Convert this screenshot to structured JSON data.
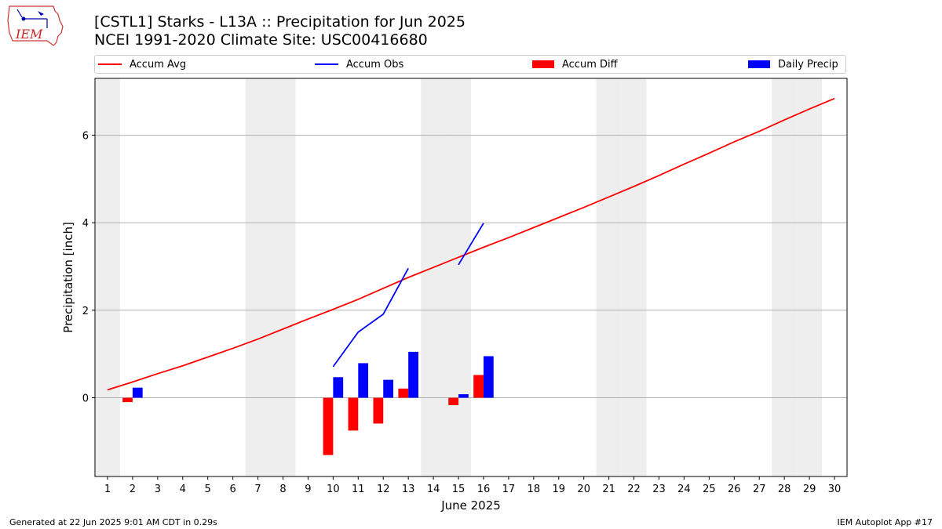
{
  "header": {
    "title_line1": "[CSTL1] Starks - L13A :: Precipitation for Jun 2025",
    "title_line2": "NCEI 1991-2020 Climate Site: USC00416680",
    "logo_text": "IEM"
  },
  "footer": {
    "left": "Generated at 22 Jun 2025 9:01 AM CDT in 0.29s",
    "right": "IEM Autoplot App #17"
  },
  "colors": {
    "avg": "#ff0000",
    "obs": "#0000ff",
    "diff": "#ff0000",
    "daily": "#0000ff",
    "weekend_shade": "#eeeeee",
    "grid": "#b0b0b0"
  },
  "chart_data": {
    "type": "bar",
    "xlabel": "June 2025",
    "ylabel": "Precipitation [inch]",
    "xlim": [
      0.5,
      30.5
    ],
    "ylim": [
      -1.8,
      7.3
    ],
    "yticks": [
      0,
      2,
      4,
      6
    ],
    "days": [
      1,
      2,
      3,
      4,
      5,
      6,
      7,
      8,
      9,
      10,
      11,
      12,
      13,
      14,
      15,
      16,
      17,
      18,
      19,
      20,
      21,
      22,
      23,
      24,
      25,
      26,
      27,
      28,
      29,
      30
    ],
    "shaded_days": [
      1,
      7,
      8,
      14,
      15,
      21,
      22,
      28,
      29
    ],
    "legend": [
      "Accum Avg",
      "Accum Obs",
      "Accum Diff",
      "Daily Precip"
    ],
    "series": [
      {
        "name": "Accum Avg",
        "kind": "line",
        "x": [
          1,
          2,
          3,
          4,
          5,
          6,
          7,
          8,
          9,
          10,
          11,
          12,
          13,
          14,
          15,
          16,
          17,
          18,
          19,
          20,
          21,
          22,
          23,
          24,
          25,
          26,
          27,
          28,
          29,
          30
        ],
        "values": [
          0.18,
          0.36,
          0.55,
          0.73,
          0.93,
          1.13,
          1.34,
          1.57,
          1.8,
          2.02,
          2.25,
          2.5,
          2.75,
          2.98,
          3.21,
          3.44,
          3.66,
          3.89,
          4.12,
          4.35,
          4.59,
          4.83,
          5.08,
          5.34,
          5.59,
          5.85,
          6.09,
          6.35,
          6.6,
          6.84
        ]
      },
      {
        "name": "Accum Obs",
        "kind": "line",
        "segments": [
          {
            "x": [
              10,
              11,
              12,
              13
            ],
            "values": [
              0.71,
              1.5,
              1.91,
              2.96
            ]
          },
          {
            "x": [
              15,
              16
            ],
            "values": [
              3.04,
              3.99
            ]
          }
        ]
      },
      {
        "name": "Accum Diff",
        "kind": "bar",
        "x": [
          2,
          10,
          11,
          12,
          13,
          15,
          16
        ],
        "values": [
          -0.1,
          -1.31,
          -0.75,
          -0.59,
          0.21,
          -0.17,
          0.52
        ]
      },
      {
        "name": "Daily Precip",
        "kind": "bar",
        "x": [
          2,
          10,
          11,
          12,
          13,
          15,
          16
        ],
        "values": [
          0.23,
          0.47,
          0.79,
          0.41,
          1.05,
          0.08,
          0.95
        ]
      }
    ]
  }
}
